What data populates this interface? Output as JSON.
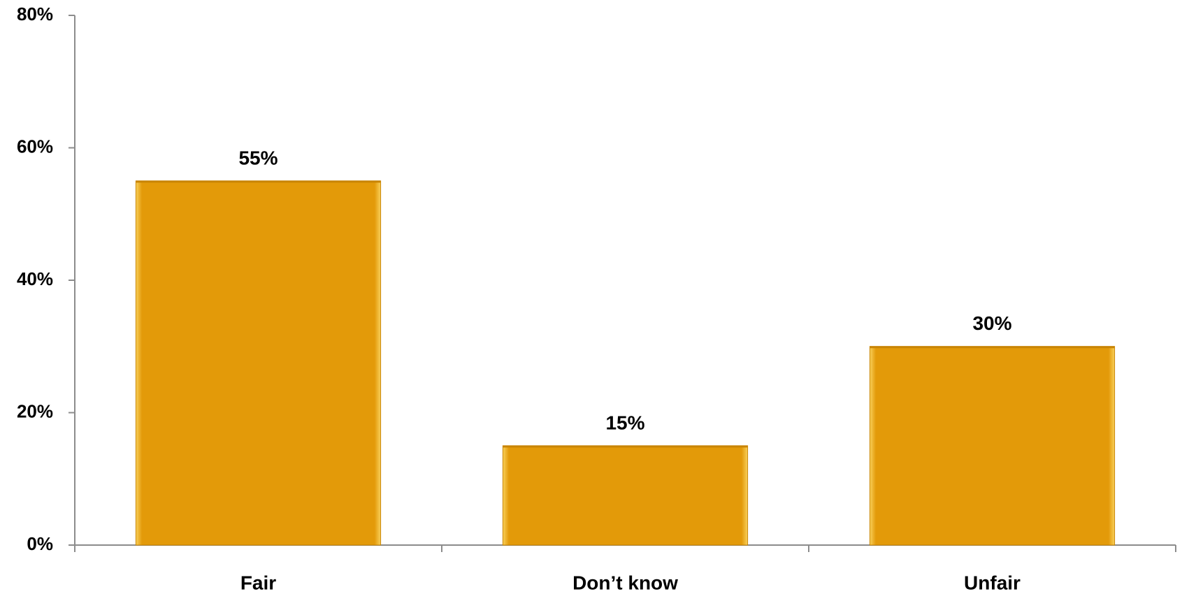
{
  "chart_data": {
    "type": "bar",
    "categories": [
      "Fair",
      "Don’t know",
      "Unfair"
    ],
    "values": [
      55,
      15,
      30
    ],
    "data_labels": [
      "55%",
      "15%",
      "30%"
    ],
    "ylim": [
      0,
      80
    ],
    "y_ticks": [
      0,
      20,
      40,
      60,
      80
    ],
    "y_tick_labels": [
      "0%",
      "20%",
      "40%",
      "60%",
      "80%"
    ],
    "title": "",
    "xlabel": "",
    "ylabel": "",
    "grid": false,
    "legend": "none",
    "colors": {
      "bar_fill": "#E39A09",
      "bar_edge": "#F7C63A",
      "bar_top": "#C98505",
      "axis": "#8C8C8C"
    }
  }
}
